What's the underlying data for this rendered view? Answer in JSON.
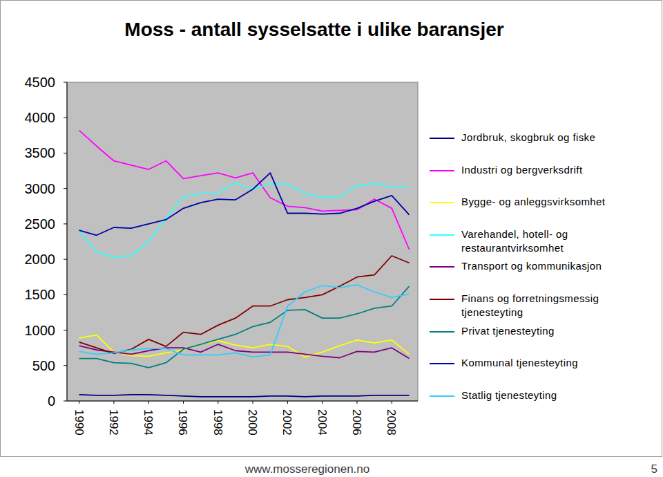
{
  "chart_data": {
    "type": "line",
    "title": "Moss - antall sysselsatte i ulike baransjer",
    "annotations": [
      "www.mosseregionen.no",
      "5"
    ],
    "x": [
      1990,
      1991,
      1992,
      1993,
      1994,
      1995,
      1996,
      1997,
      1998,
      1999,
      2000,
      2001,
      2002,
      2003,
      2004,
      2005,
      2006,
      2007,
      2008,
      2009
    ],
    "xlim": [
      1989.3,
      2009.5
    ],
    "xticks": [
      1990,
      1992,
      1994,
      1996,
      1998,
      2000,
      2002,
      2004,
      2006,
      2008
    ],
    "ylim": [
      0,
      4500
    ],
    "yticks": [
      0,
      500,
      1000,
      1500,
      2000,
      2500,
      3000,
      3500,
      4000,
      4500
    ],
    "grid": false,
    "legend": "right",
    "series": [
      {
        "name": "Jordbruk, skogbruk og fiske",
        "color": "#000080",
        "values": [
          90,
          80,
          80,
          90,
          90,
          80,
          70,
          60,
          60,
          60,
          60,
          70,
          70,
          60,
          70,
          70,
          70,
          80,
          80,
          80
        ]
      },
      {
        "name": "Industri og bergverksdrift",
        "color": "#ff00ff",
        "values": [
          3820,
          3600,
          3390,
          3330,
          3270,
          3390,
          3140,
          3180,
          3220,
          3150,
          3220,
          2870,
          2750,
          2730,
          2680,
          2690,
          2700,
          2850,
          2720,
          2140
        ]
      },
      {
        "name": "Bygge- og anleggsvirksomhet",
        "color": "#ffff00",
        "values": [
          890,
          930,
          690,
          640,
          630,
          680,
          720,
          800,
          850,
          790,
          750,
          800,
          770,
          620,
          690,
          780,
          860,
          820,
          860,
          660
        ]
      },
      {
        "name": "Varehandel, hotell- og restaurantvirksomhet",
        "color": "#33ffff",
        "values": [
          2400,
          2110,
          2030,
          2050,
          2250,
          2580,
          2880,
          2930,
          2930,
          3080,
          2990,
          3070,
          3060,
          2930,
          2870,
          2880,
          3040,
          3070,
          3020,
          3030
        ]
      },
      {
        "name": "Transport og kommunikasjon",
        "color": "#800080",
        "values": [
          780,
          720,
          690,
          660,
          710,
          750,
          750,
          690,
          800,
          710,
          690,
          690,
          690,
          660,
          630,
          610,
          700,
          690,
          750,
          600
        ]
      },
      {
        "name": "Finans og forretningsmessig tjenesteyting",
        "color": "#800000",
        "values": [
          830,
          750,
          670,
          730,
          870,
          770,
          970,
          940,
          1070,
          1170,
          1340,
          1340,
          1430,
          1460,
          1500,
          1620,
          1750,
          1780,
          2050,
          1950
        ]
      },
      {
        "name": "Privat tjenesteyting",
        "color": "#008080",
        "values": [
          600,
          600,
          540,
          530,
          470,
          540,
          730,
          800,
          870,
          940,
          1050,
          1110,
          1280,
          1290,
          1170,
          1170,
          1230,
          1310,
          1340,
          1620
        ]
      },
      {
        "name": "Kommunal tjenesteyting",
        "color": "#0000a8",
        "values": [
          2410,
          2340,
          2450,
          2440,
          2500,
          2560,
          2720,
          2800,
          2850,
          2840,
          2990,
          3220,
          2650,
          2650,
          2640,
          2650,
          2720,
          2820,
          2900,
          2630
        ]
      },
      {
        "name": "Statlig tjenesteyting",
        "color": "#33ccff",
        "values": [
          700,
          660,
          680,
          720,
          740,
          740,
          650,
          650,
          650,
          680,
          620,
          650,
          1340,
          1540,
          1630,
          1600,
          1640,
          1540,
          1460,
          1510
        ]
      }
    ]
  }
}
